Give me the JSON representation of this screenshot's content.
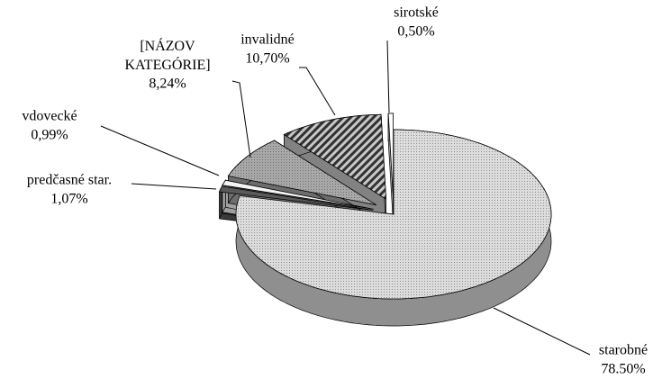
{
  "chart_data": {
    "type": "pie3d",
    "categories": [
      "starobné",
      "predčasné star.",
      "vdovecké",
      "[NÁZOV KATEGÓRIE]",
      "invalidné",
      "sirotské"
    ],
    "values": [
      78.5,
      1.07,
      0.99,
      8.24,
      10.7,
      0.5
    ],
    "value_labels": [
      "78.50%",
      "1,07%",
      "0,99%",
      "8,24%",
      "10,70%",
      "0,50%"
    ],
    "colors": [
      "#dcdcdc",
      "#5a5a5a",
      "#f4f4f4",
      "#a8a8a8",
      "#c8c8c8",
      "#ffffff"
    ]
  }
}
